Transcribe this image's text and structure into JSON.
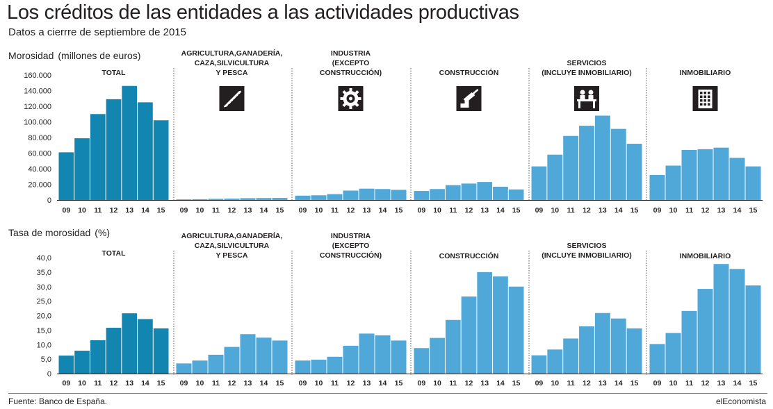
{
  "header": {
    "title": "Los créditos de las entidades a las actividades productivas",
    "subtitle": "Datos a cierrre de septiembre de 2015"
  },
  "footer": {
    "source": "Fuente: Banco de España.",
    "brand": "elEconomista"
  },
  "colors": {
    "total_bar": "#1285b0",
    "sector_bar": "#4fa8d8",
    "text": "#231f20"
  },
  "chart_data": [
    {
      "type": "bar",
      "title": "Morosidad",
      "ylabel": "(millones de euros)",
      "ylim": [
        0,
        160000
      ],
      "yticks": [
        "0",
        "20.000",
        "40.000",
        "60.000",
        "80.000",
        "100.000",
        "120.000",
        "140.000",
        "160.000"
      ],
      "ytick_values": [
        0,
        20000,
        40000,
        60000,
        80000,
        100000,
        120000,
        140000,
        160000
      ],
      "categories": [
        "09",
        "10",
        "11",
        "12",
        "13",
        "14",
        "15"
      ],
      "grid": false,
      "panels": [
        {
          "name": "TOTAL",
          "label_lines": [
            "TOTAL"
          ],
          "icon": "",
          "values": [
            61000,
            79000,
            110000,
            129000,
            146000,
            125000,
            102000
          ]
        },
        {
          "name": "AGRICULTURA,GANADERÍA, CAZA,SILVICULTURA Y PESCA",
          "label_lines": [
            "AGRICULTURA,GANADERÍA,",
            "CAZA,SILVICULTURA",
            "Y PESCA"
          ],
          "icon": "wheat-icon",
          "values": [
            800,
            1000,
            1500,
            1800,
            2300,
            2500,
            2600
          ]
        },
        {
          "name": "INDUSTRIA (EXCEPTO CONSTRUCCIÓN)",
          "label_lines": [
            "INDUSTRIA",
            "(EXCEPTO",
            "CONSTRUCCIÓN)"
          ],
          "icon": "gear-icon",
          "values": [
            5500,
            6000,
            7500,
            12000,
            14500,
            14000,
            13000
          ]
        },
        {
          "name": "CONSTRUCCIÓN",
          "label_lines": [
            "CONSTRUCCIÓN"
          ],
          "icon": "trowel-icon",
          "values": [
            11500,
            14000,
            19000,
            21000,
            23000,
            17000,
            13500
          ]
        },
        {
          "name": "SERVICIOS (INCLUYE INMOBILIARIO)",
          "label_lines": [
            "SERVICIOS",
            "(INCLUYE INMOBILIARIO)"
          ],
          "icon": "service-desk-icon",
          "values": [
            43000,
            58000,
            82000,
            95000,
            108000,
            91000,
            72000
          ]
        },
        {
          "name": "INMOBILIARIO",
          "label_lines": [
            "INMOBILIARIO"
          ],
          "icon": "building-icon",
          "values": [
            32000,
            44000,
            64000,
            65000,
            67000,
            54000,
            43000
          ]
        }
      ]
    },
    {
      "type": "bar",
      "title": "Tasa de morosidad",
      "ylabel": "(%)",
      "ylim": [
        0,
        40
      ],
      "yticks": [
        "0",
        "5,0",
        "10,0",
        "15,0",
        "20,0",
        "25,0",
        "30,0",
        "35,0",
        "40,0"
      ],
      "ytick_values": [
        0,
        5,
        10,
        15,
        20,
        25,
        30,
        35,
        40
      ],
      "categories": [
        "09",
        "10",
        "11",
        "12",
        "13",
        "14",
        "15"
      ],
      "grid": false,
      "panels": [
        {
          "name": "TOTAL",
          "label_lines": [
            "TOTAL"
          ],
          "values": [
            6.2,
            7.9,
            11.5,
            15.8,
            20.8,
            18.8,
            15.6
          ]
        },
        {
          "name": "AGRICULTURA,GANADERÍA, CAZA,SILVICULTURA Y PESCA",
          "label_lines": [
            "AGRICULTURA,GANADERÍA,",
            "CAZA,SILVICULTURA",
            "Y PESCA"
          ],
          "values": [
            3.5,
            4.5,
            6.5,
            9.2,
            13.6,
            12.4,
            11.4
          ]
        },
        {
          "name": "INDUSTRIA (EXCEPTO CONSTRUCCIÓN)",
          "label_lines": [
            "INDUSTRIA",
            "(EXCEPTO",
            "CONSTRUCCIÓN)"
          ],
          "values": [
            4.5,
            4.8,
            5.8,
            9.6,
            13.8,
            13.2,
            11.4
          ]
        },
        {
          "name": "CONSTRUCCIÓN",
          "label_lines": [
            "CONSTRUCCIÓN"
          ],
          "values": [
            8.8,
            12.3,
            18.5,
            26.6,
            35.0,
            33.5,
            30.0
          ]
        },
        {
          "name": "SERVICIOS (INCLUYE INMOBILIARIO)",
          "label_lines": [
            "SERVICIOS",
            "(INCLUYE INMOBILIARIO)"
          ],
          "values": [
            6.3,
            8.3,
            12.1,
            16.3,
            20.9,
            19.0,
            15.6
          ]
        },
        {
          "name": "INMOBILIARIO",
          "label_lines": [
            "INMOBILIARIO"
          ],
          "values": [
            10.2,
            14.0,
            21.6,
            29.2,
            37.8,
            36.1,
            30.4
          ]
        }
      ]
    }
  ]
}
